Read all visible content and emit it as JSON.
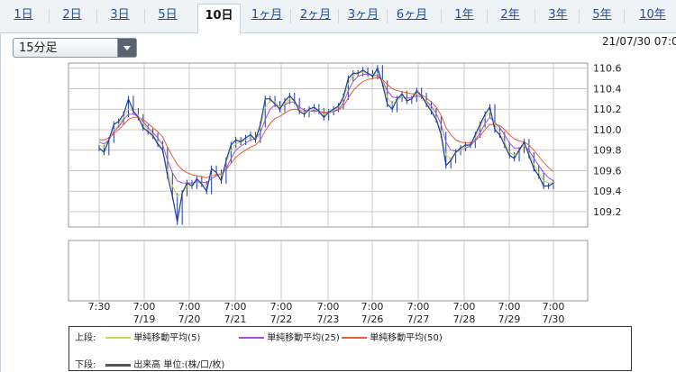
{
  "tabs": [
    "1日",
    "2日",
    "3日",
    "5日",
    "10日",
    "1ヶ月",
    "2ヶ月",
    "3ヶ月",
    "6ヶ月",
    "1年",
    "2年",
    "3年",
    "5年",
    "10年"
  ],
  "active_tab": "10日",
  "interval_select": {
    "value": "15分足"
  },
  "datetime": "21/07/30 07:0",
  "legend": {
    "upper_label": "上段:",
    "upper_items": [
      {
        "label": "単純移動平均(5)",
        "color": "#c8d85a"
      },
      {
        "label": "単純移動平均(25)",
        "color": "#a050e0"
      },
      {
        "label": "単純移動平均(50)",
        "color": "#e85a3a"
      }
    ],
    "lower_label": "下段:",
    "lower_item": {
      "label": "出来高 単位:(株/口/枚)",
      "color": "#555555"
    }
  },
  "chart_data": {
    "type": "line",
    "y_ticks": [
      "110.6",
      "110.4",
      "110.2",
      "110.0",
      "109.8",
      "109.6",
      "109.4",
      "109.2"
    ],
    "ylim": [
      109.05,
      110.65
    ],
    "x_ticks": [
      {
        "time": "7:30",
        "date": ""
      },
      {
        "time": "7:00",
        "date": "7/19"
      },
      {
        "time": "7:00",
        "date": "7/20"
      },
      {
        "time": "7:00",
        "date": "7/21"
      },
      {
        "time": "7:00",
        "date": "7/22"
      },
      {
        "time": "7:00",
        "date": "7/23"
      },
      {
        "time": "7:00",
        "date": "7/26"
      },
      {
        "time": "7:00",
        "date": "7/27"
      },
      {
        "time": "7:00",
        "date": "7/28"
      },
      {
        "time": "7:00",
        "date": "7/29"
      },
      {
        "time": "7:00",
        "date": "7/30"
      }
    ],
    "price": [
      109.82,
      109.78,
      109.9,
      110.05,
      110.08,
      110.15,
      110.3,
      110.18,
      110.12,
      110.02,
      109.98,
      109.94,
      109.86,
      109.8,
      109.55,
      109.35,
      109.1,
      109.38,
      109.48,
      109.45,
      109.52,
      109.47,
      109.4,
      109.62,
      109.58,
      109.5,
      109.7,
      109.85,
      109.9,
      109.88,
      109.92,
      109.95,
      109.9,
      110.05,
      110.3,
      110.3,
      110.25,
      110.2,
      110.28,
      110.33,
      110.28,
      110.18,
      110.15,
      110.2,
      110.22,
      110.18,
      110.12,
      110.17,
      110.2,
      110.23,
      110.32,
      110.5,
      110.55,
      110.55,
      110.58,
      110.55,
      110.52,
      110.6,
      110.45,
      110.25,
      110.2,
      110.3,
      110.35,
      110.28,
      110.3,
      110.38,
      110.33,
      110.25,
      110.18,
      110.1,
      109.95,
      109.65,
      109.7,
      109.78,
      109.82,
      109.85,
      109.85,
      109.95,
      110.05,
      110.15,
      110.22,
      110.0,
      109.95,
      109.85,
      109.75,
      109.72,
      109.8,
      109.88,
      109.75,
      109.62,
      109.55,
      109.45,
      109.45,
      109.48
    ],
    "sma5": [
      109.85,
      109.83,
      109.9,
      110.0,
      110.05,
      110.12,
      110.2,
      110.18,
      110.14,
      110.06,
      110.0,
      109.95,
      109.88,
      109.8,
      109.6,
      109.45,
      109.35,
      109.38,
      109.45,
      109.46,
      109.48,
      109.47,
      109.45,
      109.55,
      109.57,
      109.55,
      109.68,
      109.8,
      109.86,
      109.88,
      109.9,
      109.93,
      109.92,
      110.02,
      110.22,
      110.28,
      110.27,
      110.22,
      110.25,
      110.3,
      110.28,
      110.2,
      110.17,
      110.18,
      110.2,
      110.18,
      110.15,
      110.16,
      110.19,
      110.22,
      110.3,
      110.45,
      110.53,
      110.55,
      110.56,
      110.55,
      110.54,
      110.55,
      110.48,
      110.32,
      110.25,
      110.28,
      110.32,
      110.3,
      110.3,
      110.35,
      110.33,
      110.27,
      110.2,
      110.12,
      109.98,
      109.75,
      109.72,
      109.77,
      109.8,
      109.83,
      109.85,
      109.92,
      110.02,
      110.12,
      110.18,
      110.05,
      109.98,
      109.88,
      109.78,
      109.75,
      109.8,
      109.85,
      109.77,
      109.66,
      109.58,
      109.5,
      109.48,
      109.48
    ],
    "sma25": [
      109.88,
      109.86,
      109.9,
      109.98,
      110.03,
      110.1,
      110.15,
      110.15,
      110.13,
      110.08,
      110.02,
      109.97,
      109.92,
      109.85,
      109.7,
      109.58,
      109.5,
      109.48,
      109.48,
      109.48,
      109.49,
      109.49,
      109.48,
      109.52,
      109.55,
      109.56,
      109.62,
      109.72,
      109.8,
      109.84,
      109.87,
      109.9,
      109.91,
      109.97,
      110.1,
      110.2,
      110.24,
      110.23,
      110.24,
      110.27,
      110.27,
      110.22,
      110.19,
      110.18,
      110.19,
      110.18,
      110.16,
      110.16,
      110.18,
      110.2,
      110.26,
      110.38,
      110.47,
      110.52,
      110.54,
      110.54,
      110.53,
      110.53,
      110.48,
      110.38,
      110.32,
      110.31,
      110.32,
      110.31,
      110.31,
      110.33,
      110.32,
      110.28,
      110.23,
      110.16,
      110.05,
      109.88,
      109.8,
      109.79,
      109.8,
      109.82,
      109.84,
      109.9,
      109.97,
      110.06,
      110.12,
      110.07,
      110.02,
      109.95,
      109.87,
      109.82,
      109.82,
      109.84,
      109.8,
      109.72,
      109.65,
      109.58,
      109.53,
      109.5
    ],
    "sma50": [
      109.9,
      109.9,
      109.92,
      109.96,
      110.0,
      110.05,
      110.1,
      110.12,
      110.12,
      110.1,
      110.06,
      110.02,
      109.98,
      109.93,
      109.83,
      109.74,
      109.66,
      109.61,
      109.58,
      109.56,
      109.55,
      109.54,
      109.53,
      109.55,
      109.56,
      109.57,
      109.61,
      109.67,
      109.73,
      109.77,
      109.8,
      109.83,
      109.85,
      109.9,
      109.99,
      110.06,
      110.11,
      110.13,
      110.16,
      110.19,
      110.2,
      110.19,
      110.18,
      110.18,
      110.18,
      110.18,
      110.17,
      110.17,
      110.18,
      110.19,
      110.23,
      110.31,
      110.38,
      110.43,
      110.47,
      110.49,
      110.5,
      110.51,
      110.49,
      110.44,
      110.4,
      110.38,
      110.37,
      110.36,
      110.35,
      110.35,
      110.34,
      110.31,
      110.27,
      110.22,
      110.14,
      110.02,
      109.95,
      109.9,
      109.88,
      109.87,
      109.87,
      109.89,
      109.94,
      110.0,
      110.05,
      110.05,
      110.04,
      110.0,
      109.95,
      109.91,
      109.89,
      109.88,
      109.85,
      109.8,
      109.74,
      109.68,
      109.63,
      109.59
    ]
  }
}
